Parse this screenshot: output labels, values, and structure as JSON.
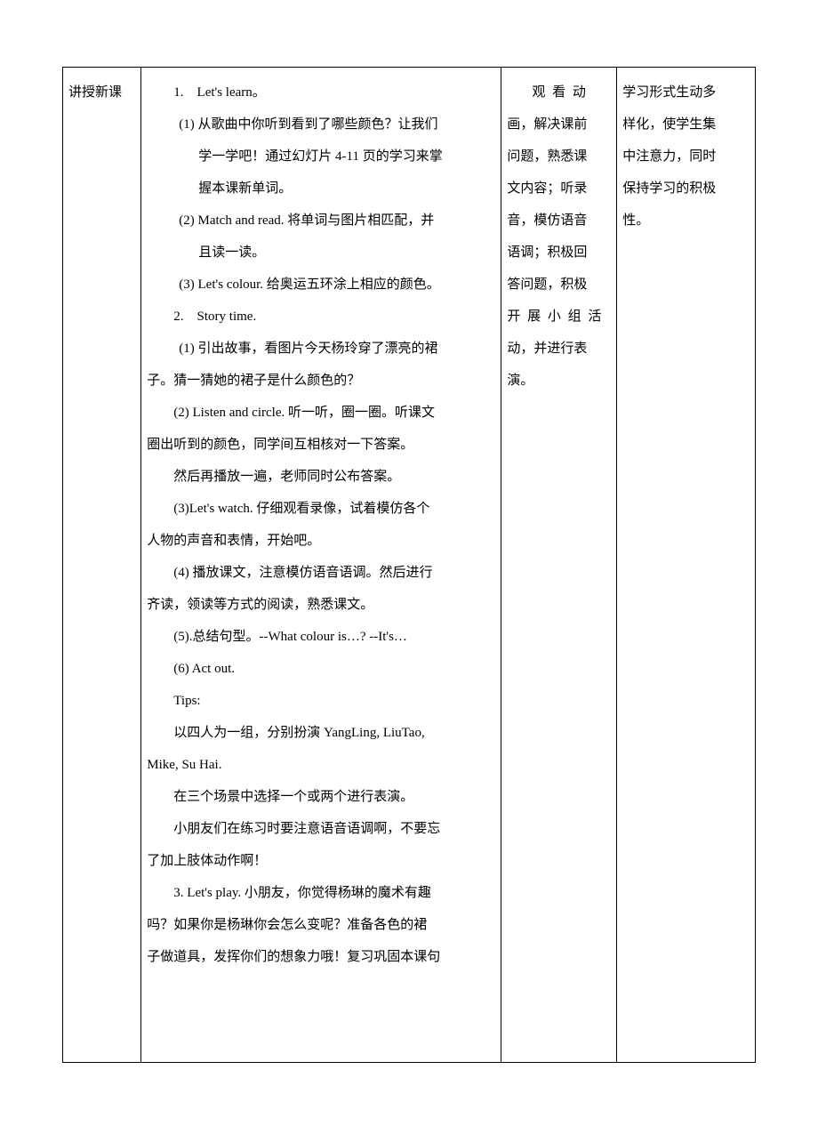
{
  "col1": {
    "heading": "讲授新课"
  },
  "col2": {
    "s1_head": "1.　Let's learn。",
    "s1_1a": "(1) 从歌曲中你听到看到了哪些颜色？让我们",
    "s1_1b": "学一学吧！通过幻灯片 4-11 页的学习来掌",
    "s1_1c": "握本课新单词。",
    "s1_2a": "(2) Match and read. 将单词与图片相匹配，并",
    "s1_2b": "且读一读。",
    "s1_3": "(3) Let's colour. 给奥运五环涂上相应的颜色。",
    "s2_head": "2.　Story time.",
    "s2_1a": "(1) 引出故事，看图片今天杨玲穿了漂亮的裙",
    "s2_1b": "子。猜一猜她的裙子是什么颜色的？",
    "s2_2a": "(2) Listen and circle. 听一听，圈一圈。听课文",
    "s2_2b": "圈出听到的颜色，同学间互相核对一下答案。",
    "s2_2c": "然后再播放一遍，老师同时公布答案。",
    "s2_3a": "(3)Let's watch. 仔细观看录像，试着模仿各个",
    "s2_3b": "人物的声音和表情，开始吧。",
    "s2_4a": "(4) 播放课文，注意模仿语音语调。然后进行",
    "s2_4b": "齐读，领读等方式的阅读，熟悉课文。",
    "s2_5": "(5).总结句型。--What colour is…? --It's…",
    "s2_6": "(6) Act out.",
    "tips": "Tips:",
    "tips_1a": "以四人为一组，分别扮演 YangLing, LiuTao,",
    "tips_1b": "Mike, Su Hai.",
    "tips_2": "在三个场景中选择一个或两个进行表演。",
    "tips_3a": "小朋友们在练习时要注意语音语调啊，不要忘",
    "tips_3b": "了加上肢体动作啊！",
    "s3_a": "3. Let's play. 小朋友，你觉得杨琳的魔术有趣",
    "s3_b": "吗？如果你是杨琳你会怎么变呢？准备各色的裙",
    "s3_c": "子做道具，发挥你们的想象力哦！复习巩固本课句"
  },
  "col3": {
    "l1": "观 看 动",
    "l2": "画，解决课前",
    "l3": "问题，熟悉课",
    "l4": "文内容；听录",
    "l5": "音，模仿语音",
    "l6": "语调；积极回",
    "l7": "答问题，积极",
    "l8": "开 展 小 组 活",
    "l9": "动，并进行表",
    "l10": "演。"
  },
  "col4": {
    "l1": "学习形式生动多",
    "l2": "样化，使学生集",
    "l3": "中注意力，同时",
    "l4": "保持学习的积极",
    "l5": "性。"
  }
}
